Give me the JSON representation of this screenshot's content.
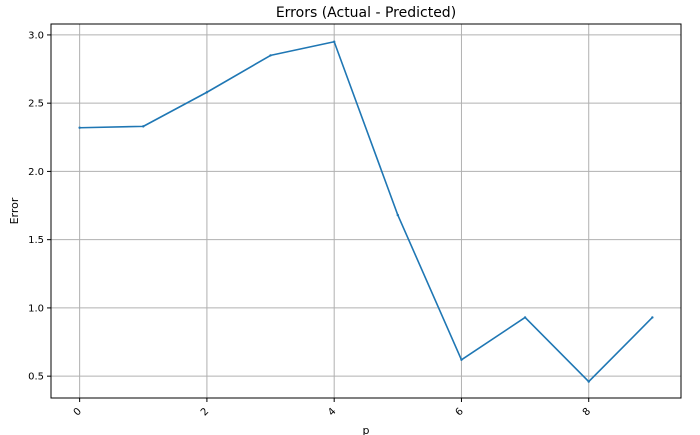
{
  "chart_data": {
    "type": "line",
    "title": "Errors (Actual - Predicted)",
    "xlabel": "p",
    "ylabel": "Error",
    "x": [
      0,
      1,
      2,
      3,
      4,
      5,
      6,
      7,
      8,
      9
    ],
    "series": [
      {
        "values": [
          2.32,
          2.33,
          2.58,
          2.85,
          2.95,
          1.68,
          0.62,
          0.93,
          0.46,
          0.93
        ]
      }
    ],
    "xlim": [
      -0.45,
      9.45
    ],
    "ylim": [
      0.34,
      3.08
    ],
    "x_ticks": [
      "0",
      "2",
      "4",
      "6",
      "8"
    ],
    "y_ticks": [
      "0.5",
      "1.0",
      "1.5",
      "2.0",
      "2.5",
      "3.0"
    ],
    "x_tick_rotation_deg": 45,
    "grid": true,
    "line_color": "#1f77b4"
  }
}
